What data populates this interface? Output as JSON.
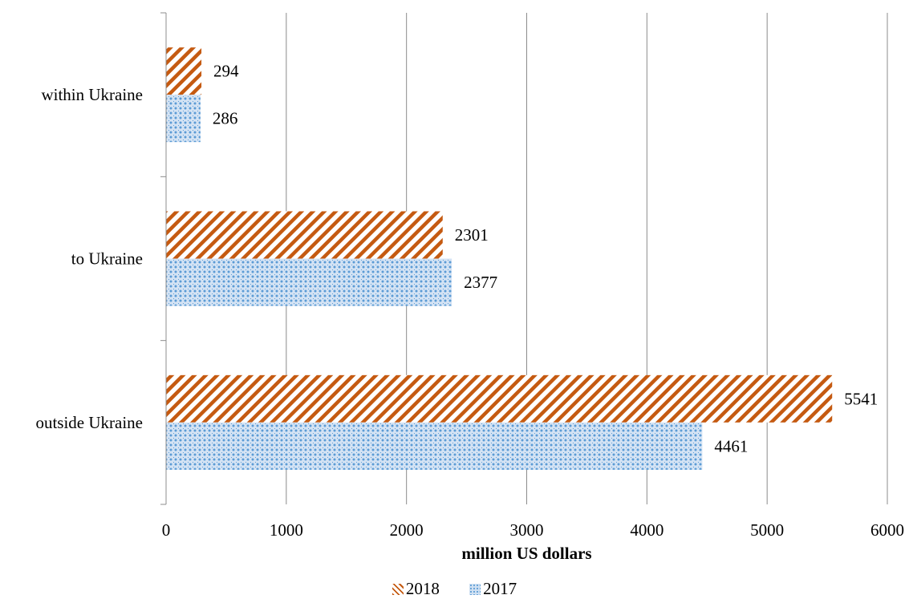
{
  "chart_data": {
    "type": "bar",
    "orientation": "horizontal",
    "title": "",
    "categories": [
      "within Ukraine",
      "to Ukraine",
      "outside Ukraine"
    ],
    "series": [
      {
        "name": "2018",
        "values": [
          294,
          2301,
          5541
        ],
        "color": "#c55a11",
        "pattern": "diagonal-stripes"
      },
      {
        "name": "2017",
        "values": [
          286,
          2377,
          4461
        ],
        "color": "#5b9bd5",
        "pattern": "dotted"
      }
    ],
    "xlabel": "million US dollars",
    "ylabel": "",
    "xlim": [
      0,
      6000
    ],
    "xticks": [
      "0",
      "1000",
      "2000",
      "3000",
      "4000",
      "5000",
      "6000"
    ],
    "data_labels": true,
    "grid": "vertical",
    "legend": "bottom"
  }
}
